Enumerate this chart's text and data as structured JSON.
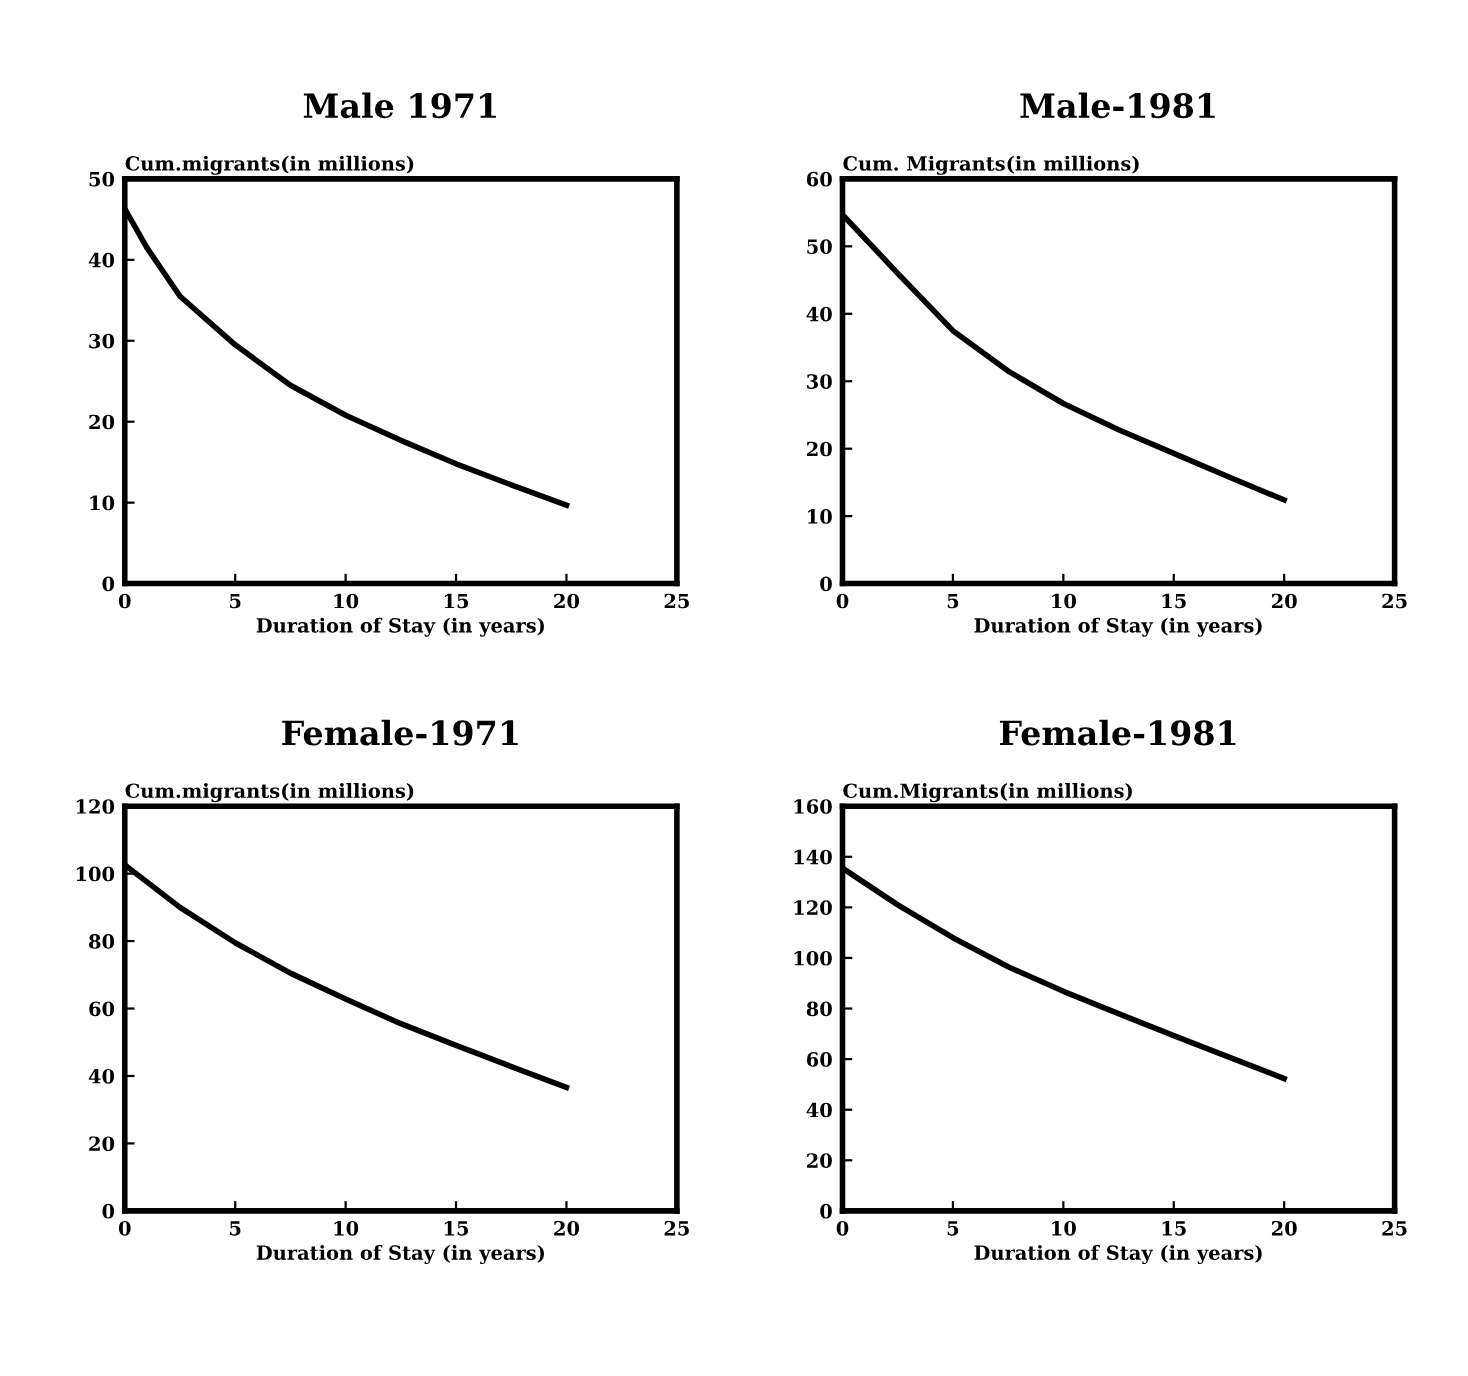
{
  "chart_data": [
    {
      "type": "line",
      "title": "Male 1971",
      "ylabel": "Cum.migrants(in millions)",
      "xlabel": "Duration of Stay (in years)",
      "x": [
        0,
        1,
        2.5,
        5,
        7.5,
        10,
        12.5,
        15,
        17.5,
        20
      ],
      "series": [
        {
          "color": "#000000",
          "values": [
            46.3,
            41.5,
            35.5,
            29.5,
            24.5,
            20.8,
            17.7,
            14.8,
            12.2,
            9.7
          ]
        }
      ],
      "xlim": [
        0,
        25
      ],
      "xticks": [
        0,
        5,
        10,
        15,
        20,
        25
      ],
      "ylim": [
        0,
        50
      ],
      "yticks": [
        0,
        10,
        20,
        30,
        40,
        50
      ],
      "grid": false,
      "legend": false
    },
    {
      "type": "line",
      "title": "Male-1981",
      "ylabel": "Cum. Migrants(in millions)",
      "xlabel": "Duration of Stay (in years)",
      "x": [
        0,
        2.5,
        5,
        7.5,
        10,
        12.5,
        15,
        17.5,
        20
      ],
      "series": [
        {
          "color": "#000000",
          "values": [
            54.7,
            46,
            37.5,
            31.5,
            26.7,
            22.8,
            19.3,
            15.8,
            12.4
          ]
        }
      ],
      "xlim": [
        0,
        25
      ],
      "xticks": [
        0,
        5,
        10,
        15,
        20,
        25
      ],
      "ylim": [
        0,
        60
      ],
      "yticks": [
        0,
        10,
        20,
        30,
        40,
        50,
        60
      ],
      "grid": false,
      "legend": false
    },
    {
      "type": "line",
      "title": "Female-1971",
      "ylabel": "Cum.migrants(in millions)",
      "xlabel": "Duration of Stay (in years)",
      "x": [
        0,
        2.5,
        5,
        7.5,
        10,
        12.5,
        15,
        17.5,
        20
      ],
      "series": [
        {
          "color": "#000000",
          "values": [
            102.6,
            90,
            79.5,
            70.5,
            62.8,
            55.5,
            49.1,
            42.8,
            36.6
          ]
        }
      ],
      "xlim": [
        0,
        25
      ],
      "xticks": [
        0,
        5,
        10,
        15,
        20,
        25
      ],
      "ylim": [
        0,
        120
      ],
      "yticks": [
        0,
        20,
        40,
        60,
        80,
        100,
        120
      ],
      "grid": false,
      "legend": false
    },
    {
      "type": "line",
      "title": "Female-1981",
      "ylabel": "Cum.Migrants(in millions)",
      "xlabel": "Duration of Stay (in years)",
      "x": [
        0,
        2.5,
        5,
        7.5,
        10,
        12.5,
        15,
        17.5,
        20
      ],
      "series": [
        {
          "color": "#000000",
          "values": [
            135.5,
            121,
            108,
            96.5,
            86.8,
            78,
            69.3,
            60.8,
            52.3
          ]
        }
      ],
      "xlim": [
        0,
        25
      ],
      "xticks": [
        0,
        5,
        10,
        15,
        20,
        25
      ],
      "ylim": [
        0,
        160
      ],
      "yticks": [
        0,
        20,
        40,
        60,
        80,
        100,
        120,
        140,
        160
      ],
      "grid": false,
      "legend": false
    }
  ]
}
